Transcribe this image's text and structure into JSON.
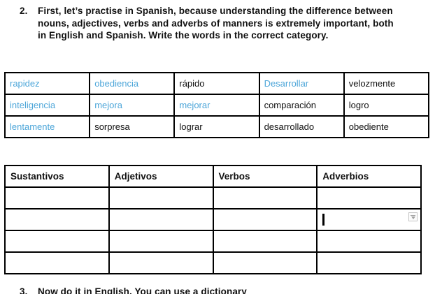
{
  "instruction": {
    "number": "2.",
    "lines": [
      "First, let’s practise in Spanish, because understanding the difference between",
      "nouns, adjectives, verbs and adverbs of manners is extremely important, both",
      "in English and Spanish. Write the words in the correct category."
    ]
  },
  "word_bank": {
    "rows": [
      [
        {
          "text": "rapidez",
          "color": "blue"
        },
        {
          "text": "obediencia",
          "color": "blue"
        },
        {
          "text": "rápido",
          "color": "black"
        },
        {
          "text": "Desarrollar",
          "color": "blue"
        },
        {
          "text": "velozmente",
          "color": "black"
        }
      ],
      [
        {
          "text": "inteligencia",
          "color": "blue"
        },
        {
          "text": "mejora",
          "color": "blue"
        },
        {
          "text": "mejorar",
          "color": "blue"
        },
        {
          "text": "comparación",
          "color": "black"
        },
        {
          "text": "logro",
          "color": "black"
        }
      ],
      [
        {
          "text": "lentamente",
          "color": "blue"
        },
        {
          "text": "sorpresa",
          "color": "black"
        },
        {
          "text": "lograr",
          "color": "black"
        },
        {
          "text": "desarrollado",
          "color": "black"
        },
        {
          "text": "obediente",
          "color": "black"
        }
      ]
    ]
  },
  "category_table": {
    "headers": [
      "Sustantivos",
      "Adjetivos",
      "Verbos",
      "Adverbios"
    ],
    "empty_row_count": 4,
    "cursor_position": {
      "row": 2,
      "column": "Adverbios"
    }
  },
  "footer_instruction": {
    "number": "3.",
    "lines": [
      "Now do it in English. You can use a dictionary"
    ]
  },
  "colors": {
    "link_blue": "#4da6d9",
    "text_black": "#111111",
    "table_border": "#000000",
    "dropdown_border": "#c6c6c6",
    "dropdown_glyph": "#a0a0a0"
  }
}
